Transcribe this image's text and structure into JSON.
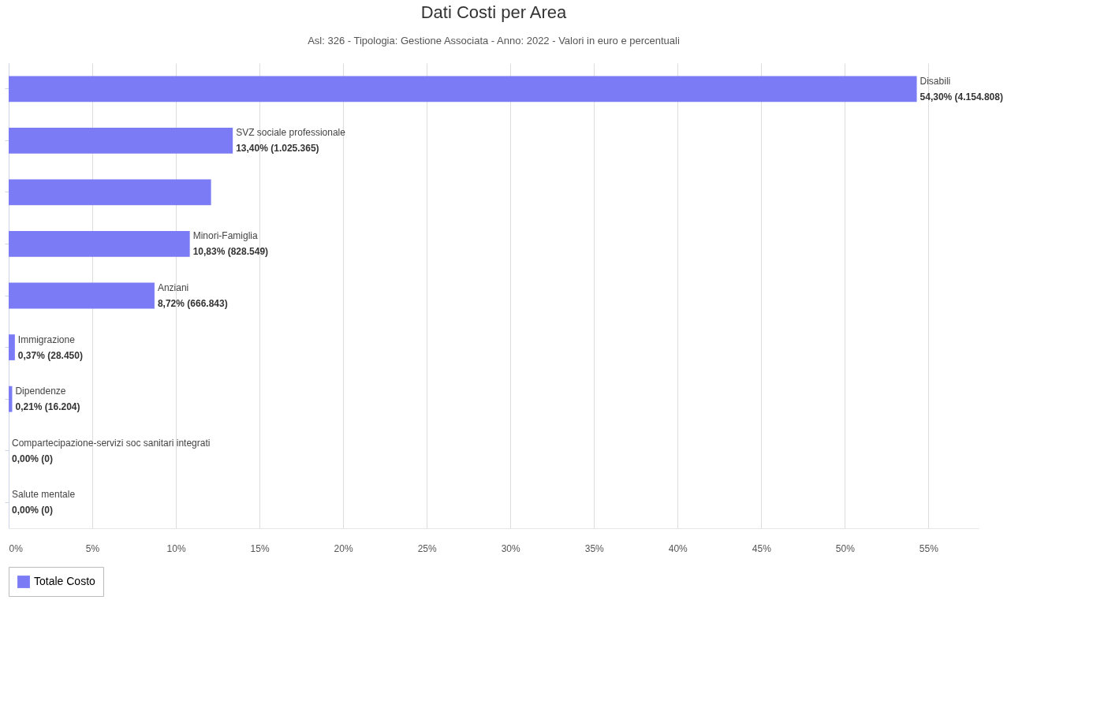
{
  "chart_data": {
    "type": "bar",
    "orientation": "horizontal",
    "title": "Dati Costi per Area",
    "subtitle": "Asl: 326 - Tipologia: Gestione Associata - Anno: 2022 - Valori in euro e percentuali",
    "categories": [
      "Disabili",
      "SVZ sociale professionale",
      null,
      "Minori-Famiglia",
      "Anziani",
      "Immigrazione",
      "Dipendenze",
      "Compartecipazione-servizi soc sanitari integrati",
      "Salute mentale"
    ],
    "series": [
      {
        "name": "Totale Costo",
        "color": "#7b7bf5",
        "values": [
          54.3,
          13.4,
          12.1,
          10.83,
          8.72,
          0.37,
          0.21,
          0,
          0
        ],
        "value_labels": [
          "54,30% (4.154.808)",
          "13,40% (1.025.365)",
          null,
          "10,83% (828.549)",
          "8,72% (666.843)",
          "0,37% (28.450)",
          "0,21% (16.204)",
          "0,00% (0)",
          "0,00% (0)"
        ]
      }
    ],
    "xlim": [
      0,
      58
    ],
    "xticks": [
      {
        "value": 0,
        "label": "0%"
      },
      {
        "value": 5,
        "label": "5%"
      },
      {
        "value": 10,
        "label": "10%"
      },
      {
        "value": 15,
        "label": "15%"
      },
      {
        "value": 20,
        "label": "20%"
      },
      {
        "value": 25,
        "label": "25%"
      },
      {
        "value": 30,
        "label": "30%"
      },
      {
        "value": 35,
        "label": "35%"
      },
      {
        "value": 40,
        "label": "40%"
      },
      {
        "value": 45,
        "label": "45%"
      },
      {
        "value": 50,
        "label": "50%"
      },
      {
        "value": 55,
        "label": "55%"
      }
    ],
    "grid": "x",
    "legend": "bottom"
  }
}
